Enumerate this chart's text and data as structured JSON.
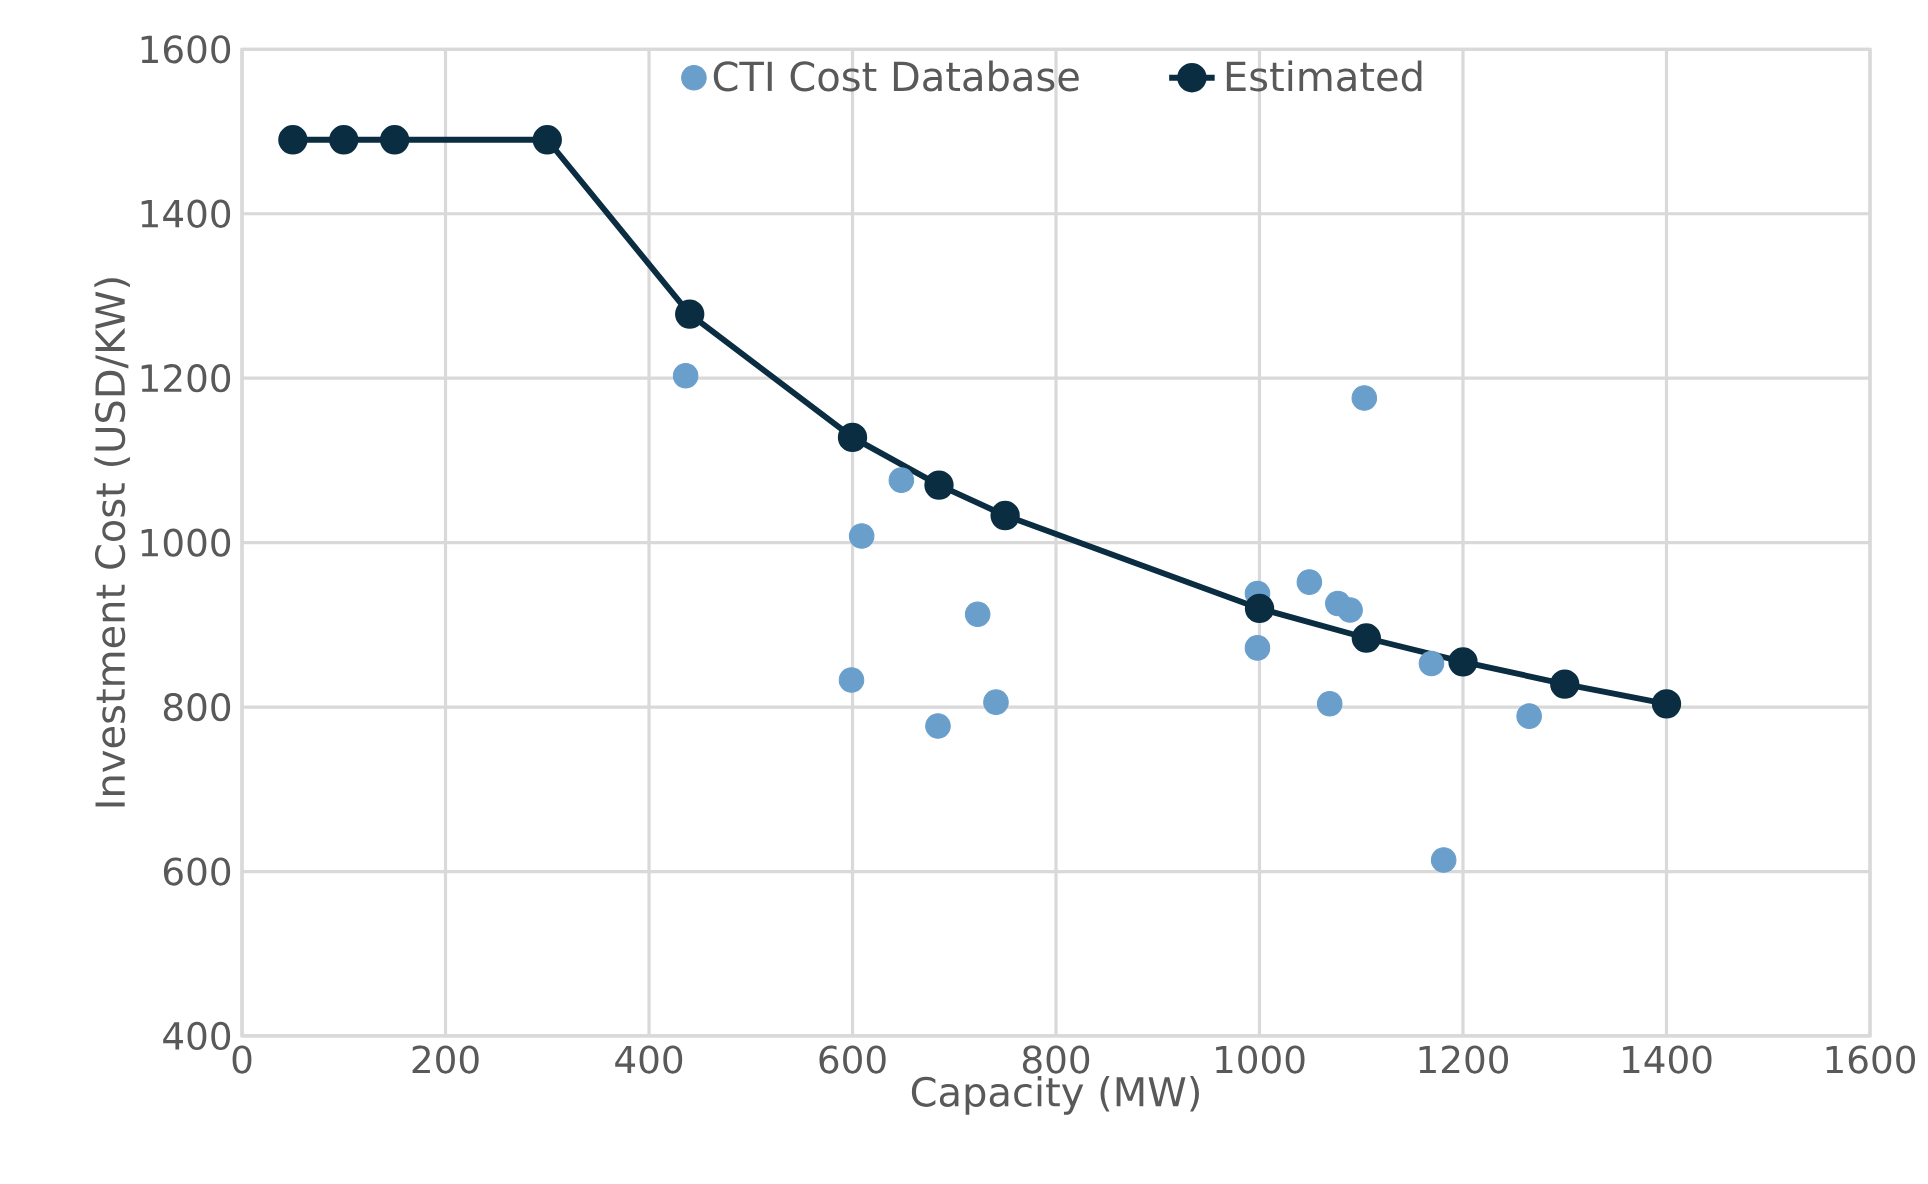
{
  "chart_data": {
    "type": "scatter",
    "xlabel": "Capacity (MW)",
    "ylabel": "Investment Cost (USD/KW)",
    "xlim": [
      0,
      1600
    ],
    "xticks": [
      0,
      200,
      400,
      600,
      800,
      1000,
      1200,
      1400,
      1600
    ],
    "ylim": [
      400,
      1600
    ],
    "yticks": [
      400,
      600,
      800,
      1000,
      1200,
      1400,
      1600
    ],
    "grid": true,
    "legend": "top",
    "marker": "circle",
    "series": [
      {
        "name": "CTI Cost Database",
        "color": "#6a9fcb",
        "x": [
          436,
          648,
          609,
          599,
          723,
          684,
          741,
          998,
          998,
          1049,
          1077,
          1089,
          1103,
          1069,
          1169,
          1265,
          1181
        ],
        "values": [
          1203,
          1076,
          1008,
          833,
          913,
          777,
          806,
          938,
          872,
          952,
          926,
          918,
          1176,
          804,
          853,
          789,
          614
        ]
      },
      {
        "name": "Estimated",
        "type": "line",
        "line_style": "solid",
        "color": "#0b2d42",
        "x": [
          50,
          100,
          150,
          300,
          440,
          600,
          685,
          750,
          1000,
          1105,
          1200,
          1300,
          1400
        ],
        "values": [
          1490,
          1490,
          1490,
          1490,
          1278,
          1128,
          1070,
          1033,
          920,
          884,
          855,
          828,
          804
        ]
      }
    ]
  }
}
